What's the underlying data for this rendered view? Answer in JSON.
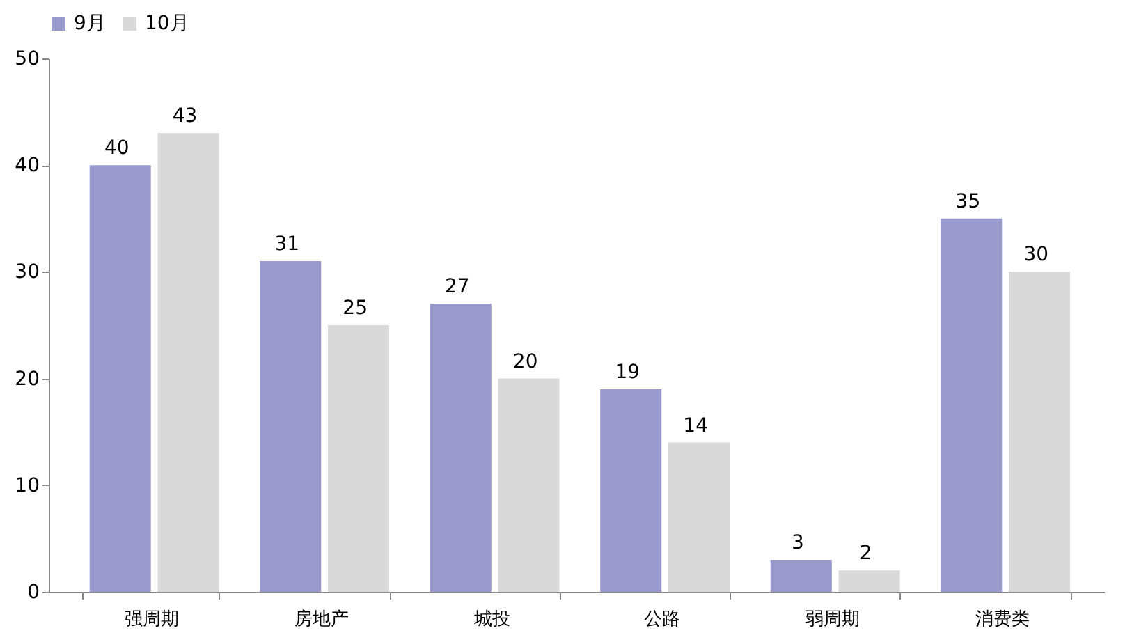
{
  "chart_data": {
    "type": "bar",
    "categories": [
      "强周期",
      "房地产",
      "城投",
      "公路",
      "弱周期",
      "消费类"
    ],
    "series": [
      {
        "name": "9月",
        "color": "#9999cc",
        "values": [
          40,
          31,
          27,
          19,
          3,
          35
        ]
      },
      {
        "name": "10月",
        "color": "#d9d9d9",
        "values": [
          43,
          25,
          20,
          14,
          2,
          30
        ]
      }
    ],
    "ylim": [
      0,
      50
    ],
    "yticks": [
      0,
      10,
      20,
      30,
      40,
      50
    ],
    "grid": false,
    "legend": "top",
    "data_labels": true
  }
}
